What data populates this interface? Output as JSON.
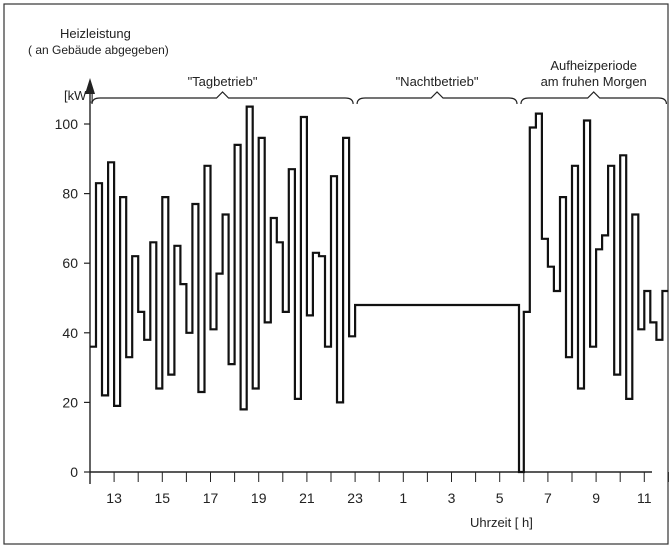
{
  "chart_data": {
    "type": "line",
    "title": "",
    "ylabel_lines": [
      "Heizleistung",
      "( an Gebäude abgegeben)"
    ],
    "yunit": "[kW ]",
    "xlabel": "Uhrzeit  [ h]",
    "ylim": [
      0,
      110
    ],
    "yticks": [
      0,
      20,
      40,
      60,
      80,
      100
    ],
    "x_tick_labels": [
      "13",
      "15",
      "17",
      "19",
      "21",
      "23",
      "1",
      "3",
      "5",
      "7",
      "9",
      "11"
    ],
    "x_tick_positions_h": [
      13,
      15,
      17,
      19,
      21,
      23,
      25,
      27,
      29,
      31,
      33,
      35
    ],
    "xlim_h": [
      12,
      36
    ],
    "grid": false,
    "annotations": [
      {
        "text": "\"Tagbetrieb\"",
        "x_from_h": 12,
        "x_to_h": 23
      },
      {
        "text": "\"Nachtbetrieb\"",
        "x_from_h": 23,
        "x_to_h": 29.8
      },
      {
        "text_lines": [
          "Aufheizperiode",
          "am fruhen Morgen"
        ],
        "x_from_h": 29.8,
        "x_to_h": 36
      }
    ],
    "series": [
      {
        "step": "post",
        "x": [
          12.0,
          12.25,
          12.5,
          12.75,
          13.0,
          13.25,
          13.5,
          13.75,
          14.0,
          14.25,
          14.5,
          14.75,
          15.0,
          15.25,
          15.5,
          15.75,
          16.0,
          16.25,
          16.5,
          16.75,
          17.0,
          17.25,
          17.5,
          17.75,
          18.0,
          18.25,
          18.5,
          18.75,
          19.0,
          19.25,
          19.5,
          19.75,
          20.0,
          20.25,
          20.5,
          20.75,
          21.0,
          21.25,
          21.5,
          21.75,
          22.0,
          22.25,
          22.5,
          22.75,
          23.0,
          29.8,
          30.0,
          30.25,
          30.5,
          30.75,
          31.0,
          31.25,
          31.5,
          31.75,
          32.0,
          32.25,
          32.5,
          32.75,
          33.0,
          33.25,
          33.5,
          33.75,
          34.0,
          34.25,
          34.5,
          34.75,
          35.0,
          35.25,
          35.5,
          35.75,
          36.0
        ],
        "values": [
          36,
          83,
          22,
          89,
          19,
          79,
          33,
          62,
          46,
          38,
          66,
          24,
          79,
          28,
          65,
          54,
          40,
          77,
          23,
          88,
          41,
          57,
          74,
          31,
          94,
          18,
          105,
          24,
          96,
          43,
          73,
          66,
          46,
          87,
          21,
          102,
          45,
          63,
          62,
          36,
          85,
          20,
          96,
          39,
          48,
          0,
          46,
          99,
          103,
          67,
          59,
          52,
          79,
          33,
          88,
          24,
          101,
          36,
          64,
          68,
          88,
          28,
          91,
          21,
          74,
          41,
          52,
          43,
          38,
          52,
          52
        ]
      }
    ]
  }
}
